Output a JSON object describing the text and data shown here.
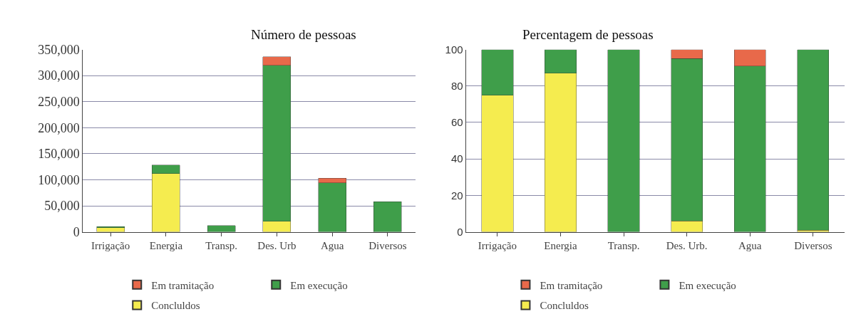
{
  "chart_data": [
    {
      "type": "bar",
      "title": "Número de pessoas",
      "stacked": true,
      "categories": [
        "Irrigação",
        "Energia",
        "Transp.",
        "Des. Urb",
        "Agua",
        "Diversos"
      ],
      "series": [
        {
          "name": "Concluldos",
          "color": "#f5ec4f",
          "values": [
            8000,
            112000,
            null,
            20000,
            null,
            null
          ]
        },
        {
          "name": "Em execução",
          "color": "#3f9e4a",
          "values": [
            2000,
            16000,
            12000,
            300000,
            94000,
            58000
          ]
        },
        {
          "name": "Em tramitação",
          "color": "#e8694a",
          "values": [
            null,
            null,
            null,
            16000,
            9000,
            null
          ]
        }
      ],
      "ylim": [
        0,
        350000
      ],
      "yticks": [
        0,
        {
          "value": 50000,
          "label": "50,000"
        },
        {
          "value": 100000,
          "label": "100,000"
        },
        {
          "value": 150000,
          "label": "150,000"
        },
        {
          "value": 200000,
          "label": "200,000"
        },
        {
          "value": 250000,
          "label": "250,000"
        },
        {
          "value": 300000,
          "label": "300,000"
        },
        {
          "value": 350000,
          "label": "350,000"
        }
      ],
      "grid": "y",
      "legend": "bottom"
    },
    {
      "type": "bar",
      "title": "Percentagem de pessoas",
      "stacked": true,
      "categories": [
        "Irrigação",
        "Energia",
        "Transp.",
        "Des. Urb.",
        "Agua",
        "Diversos"
      ],
      "series": [
        {
          "name": "Concluldos",
          "color": "#f5ec4f",
          "values": [
            75,
            87,
            null,
            6,
            null,
            1
          ]
        },
        {
          "name": "Em execução",
          "color": "#3f9e4a",
          "values": [
            25,
            13,
            100,
            89,
            91,
            99
          ]
        },
        {
          "name": "Em tramitação",
          "color": "#e8694a",
          "values": [
            null,
            null,
            null,
            5,
            9,
            null
          ]
        }
      ],
      "ylim": [
        0,
        100
      ],
      "yticks": [
        0,
        20,
        40,
        60,
        80,
        100
      ],
      "grid": "y",
      "legend": "bottom"
    }
  ]
}
